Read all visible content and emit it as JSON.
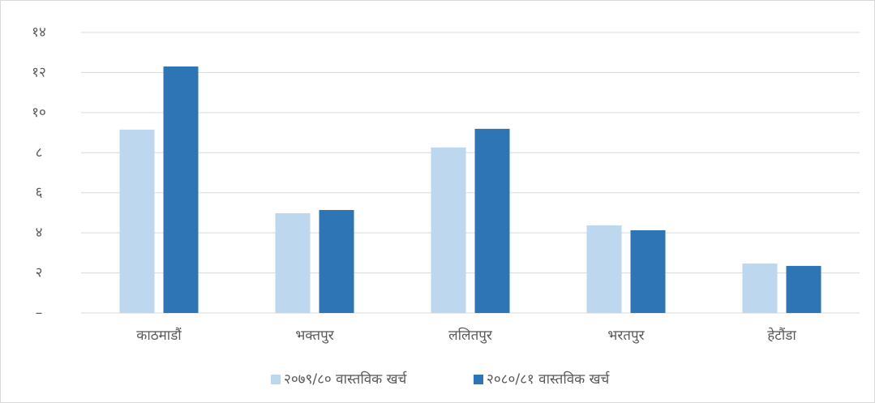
{
  "chart_data": {
    "type": "bar",
    "categories": [
      "काठमाडौं",
      "भक्तपुर",
      "ललितपुर",
      "भरतपुर",
      "हेटौंडा"
    ],
    "series": [
      {
        "name": "२०७९/८० वास्तविक खर्च",
        "color": "#bdd7ee",
        "values": [
          9.15,
          4.98,
          8.26,
          4.37,
          2.47
        ]
      },
      {
        "name": "२०८०/८१ वास्तविक खर्च",
        "color": "#2e75b6",
        "values": [
          12.3,
          5.14,
          9.19,
          4.13,
          2.35
        ]
      }
    ],
    "ylim": [
      0,
      14
    ],
    "yticks": [
      {
        "value": 0,
        "label": "–"
      },
      {
        "value": 2,
        "label": "२"
      },
      {
        "value": 4,
        "label": "४"
      },
      {
        "value": 6,
        "label": "६"
      },
      {
        "value": 8,
        "label": "८"
      },
      {
        "value": 10,
        "label": "१०"
      },
      {
        "value": 12,
        "label": "१२"
      },
      {
        "value": 14,
        "label": "१४"
      }
    ],
    "grid": true,
    "legend": "bottom"
  }
}
